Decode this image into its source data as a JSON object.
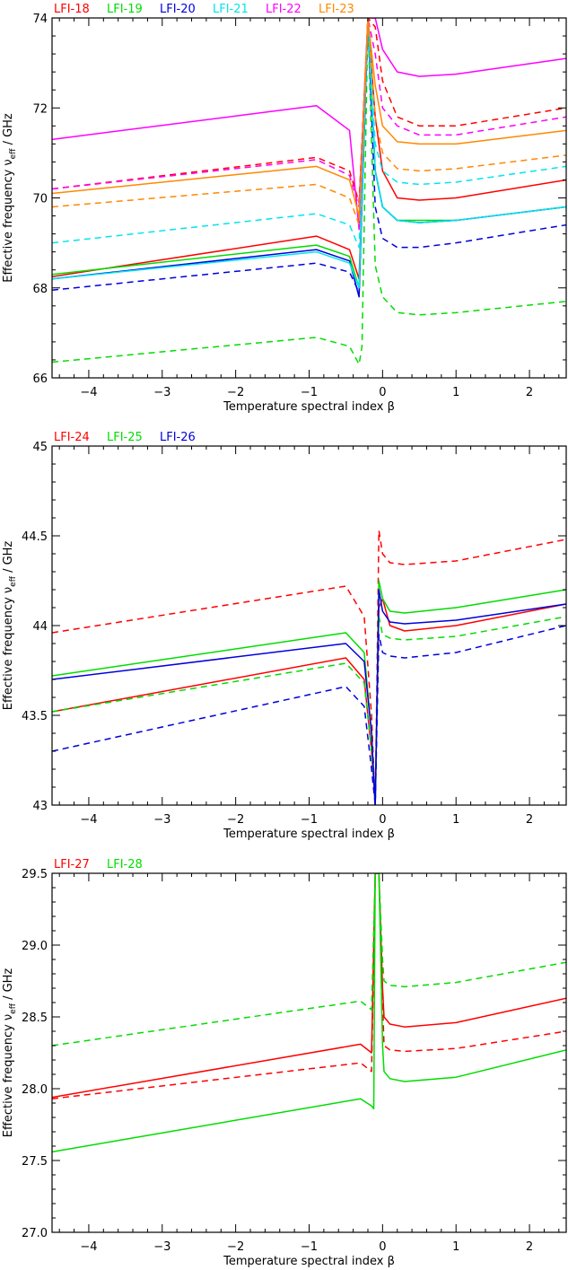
{
  "chart_data": [
    {
      "type": "line",
      "xlabel": "Temperature spectral index β",
      "ylabel": "Effective frequency ν_eff / GHz",
      "xlim": [
        -4.5,
        2.5
      ],
      "ylim": [
        66,
        74
      ],
      "xticks": [
        -4,
        -3,
        -2,
        -1,
        0,
        1,
        2
      ],
      "yticks": [
        66,
        68,
        70,
        72,
        74
      ],
      "legend": "top-left, above plot",
      "grid": false,
      "series": [
        {
          "name": "LFI-18",
          "color": "#ff0000",
          "style": "solid",
          "x": [
            -4.5,
            -0.9,
            -0.45,
            -0.32,
            -0.2,
            -0.1,
            0.0,
            0.2,
            0.5,
            1.0,
            2.5
          ],
          "values": [
            68.25,
            69.15,
            68.85,
            68.2,
            74.0,
            71.8,
            70.6,
            70.0,
            69.95,
            70.0,
            70.4
          ]
        },
        {
          "name": "LFI-18",
          "color": "#ff0000",
          "style": "dashed",
          "x": [
            -4.5,
            -0.9,
            -0.45,
            -0.32,
            -0.2,
            -0.1,
            0.0,
            0.2,
            0.5,
            1.0,
            2.5
          ],
          "values": [
            70.2,
            70.9,
            70.6,
            69.9,
            74.0,
            73.8,
            72.6,
            71.8,
            71.6,
            71.6,
            72.0
          ]
        },
        {
          "name": "LFI-19",
          "color": "#00dd00",
          "style": "solid",
          "x": [
            -4.5,
            -0.9,
            -0.45,
            -0.32,
            -0.2,
            -0.1,
            0.0,
            0.2,
            0.5,
            1.0,
            2.5
          ],
          "values": [
            68.3,
            68.95,
            68.7,
            68.0,
            74.0,
            70.6,
            69.8,
            69.5,
            69.5,
            69.5,
            69.8
          ]
        },
        {
          "name": "LFI-19",
          "color": "#00dd00",
          "style": "dashed",
          "x": [
            -4.5,
            -0.9,
            -0.45,
            -0.32,
            -0.28,
            -0.2,
            -0.1,
            0.0,
            0.2,
            0.5,
            1.0,
            2.5
          ],
          "values": [
            66.35,
            66.9,
            66.7,
            66.3,
            66.7,
            74.0,
            68.5,
            67.8,
            67.45,
            67.4,
            67.45,
            67.7
          ]
        },
        {
          "name": "LFI-20",
          "color": "#0000dd",
          "style": "solid",
          "x": [
            -4.5,
            -0.9,
            -0.45,
            -0.32,
            -0.2,
            -0.1,
            0.0,
            0.2,
            0.5,
            1.0,
            2.5
          ],
          "values": [
            68.2,
            68.85,
            68.6,
            67.8,
            74.0,
            70.6,
            69.8,
            69.5,
            69.45,
            69.5,
            69.8
          ]
        },
        {
          "name": "LFI-20",
          "color": "#0000dd",
          "style": "dashed",
          "x": [
            -4.5,
            -0.9,
            -0.45,
            -0.32,
            -0.2,
            -0.1,
            0.0,
            0.2,
            0.5,
            1.0,
            2.5
          ],
          "values": [
            67.95,
            68.55,
            68.35,
            67.9,
            74.0,
            69.8,
            69.1,
            68.9,
            68.9,
            69.0,
            69.4
          ]
        },
        {
          "name": "LFI-21",
          "color": "#00e5ee",
          "style": "solid",
          "x": [
            -4.5,
            -0.9,
            -0.45,
            -0.32,
            -0.2,
            -0.1,
            0.0,
            0.2,
            0.5,
            1.0,
            2.5
          ],
          "values": [
            68.2,
            68.8,
            68.55,
            68.0,
            74.0,
            70.6,
            69.8,
            69.5,
            69.45,
            69.5,
            69.8
          ]
        },
        {
          "name": "LFI-21",
          "color": "#00e5ee",
          "style": "dashed",
          "x": [
            -4.5,
            -0.9,
            -0.45,
            -0.32,
            -0.2,
            -0.1,
            0.0,
            0.2,
            0.5,
            1.0,
            2.5
          ],
          "values": [
            69.0,
            69.65,
            69.4,
            68.9,
            74.0,
            71.2,
            70.6,
            70.35,
            70.3,
            70.35,
            70.7
          ]
        },
        {
          "name": "LFI-22",
          "color": "#ff00ff",
          "style": "solid",
          "x": [
            -4.5,
            -0.9,
            -0.45,
            -0.32,
            -0.2,
            -0.1,
            0.0,
            0.2,
            0.5,
            1.0,
            2.5
          ],
          "values": [
            71.3,
            72.05,
            71.5,
            69.3,
            74.0,
            74.0,
            73.3,
            72.8,
            72.7,
            72.75,
            73.1
          ]
        },
        {
          "name": "LFI-22",
          "color": "#ff00ff",
          "style": "dashed",
          "x": [
            -4.5,
            -0.9,
            -0.45,
            -0.32,
            -0.2,
            -0.1,
            0.0,
            0.2,
            0.5,
            1.0,
            2.5
          ],
          "values": [
            70.2,
            70.85,
            70.5,
            69.8,
            74.0,
            73.2,
            72.0,
            71.6,
            71.4,
            71.4,
            71.8
          ]
        },
        {
          "name": "LFI-23",
          "color": "#ff8800",
          "style": "solid",
          "x": [
            -4.5,
            -0.9,
            -0.45,
            -0.32,
            -0.2,
            -0.1,
            0.0,
            0.2,
            0.5,
            1.0,
            2.5
          ],
          "values": [
            70.1,
            70.7,
            70.4,
            69.6,
            74.0,
            72.5,
            71.6,
            71.25,
            71.2,
            71.2,
            71.5
          ]
        },
        {
          "name": "LFI-23",
          "color": "#ff8800",
          "style": "dashed",
          "x": [
            -4.5,
            -0.9,
            -0.45,
            -0.32,
            -0.2,
            -0.1,
            0.0,
            0.2,
            0.5,
            1.0,
            2.5
          ],
          "values": [
            69.8,
            70.3,
            70.0,
            69.4,
            74.0,
            71.8,
            71.0,
            70.65,
            70.6,
            70.65,
            70.95
          ]
        }
      ]
    },
    {
      "type": "line",
      "xlabel": "Temperature spectral index β",
      "ylabel": "Effective frequency ν_eff / GHz",
      "xlim": [
        -4.5,
        2.5
      ],
      "ylim": [
        43.0,
        45.0
      ],
      "xticks": [
        -4,
        -3,
        -2,
        -1,
        0,
        1,
        2
      ],
      "yticks": [
        43.0,
        43.5,
        44.0,
        44.5,
        45.0
      ],
      "legend": "top-left, above plot",
      "grid": false,
      "series": [
        {
          "name": "LFI-24",
          "color": "#ff0000",
          "style": "solid",
          "x": [
            -4.5,
            -0.5,
            -0.25,
            -0.15,
            -0.1,
            -0.05,
            0.0,
            0.1,
            0.3,
            1.0,
            2.5
          ],
          "values": [
            43.52,
            43.82,
            43.7,
            43.3,
            43.0,
            44.1,
            44.15,
            44.0,
            43.97,
            44.0,
            44.12
          ]
        },
        {
          "name": "LFI-24",
          "color": "#ff0000",
          "style": "dashed",
          "x": [
            -4.5,
            -0.5,
            -0.25,
            -0.15,
            -0.1,
            -0.05,
            0.0,
            0.1,
            0.3,
            1.0,
            2.5
          ],
          "values": [
            43.96,
            44.22,
            44.05,
            43.5,
            43.0,
            44.53,
            44.4,
            44.35,
            44.34,
            44.36,
            44.48
          ]
        },
        {
          "name": "LFI-25",
          "color": "#00dd00",
          "style": "solid",
          "x": [
            -4.5,
            -0.5,
            -0.25,
            -0.15,
            -0.1,
            -0.05,
            0.0,
            0.1,
            0.3,
            1.0,
            2.5
          ],
          "values": [
            43.72,
            43.96,
            43.85,
            43.4,
            43.0,
            44.25,
            44.15,
            44.08,
            44.07,
            44.1,
            44.2
          ]
        },
        {
          "name": "LFI-25",
          "color": "#00dd00",
          "style": "dashed",
          "x": [
            -4.5,
            -0.5,
            -0.25,
            -0.15,
            -0.1,
            -0.05,
            0.0,
            0.1,
            0.3,
            1.0,
            2.5
          ],
          "values": [
            43.52,
            43.79,
            43.68,
            43.3,
            43.0,
            44.05,
            43.95,
            43.93,
            43.92,
            43.94,
            44.05
          ]
        },
        {
          "name": "LFI-26",
          "color": "#0000dd",
          "style": "solid",
          "x": [
            -4.5,
            -0.5,
            -0.25,
            -0.15,
            -0.1,
            -0.05,
            0.0,
            0.1,
            0.3,
            1.0,
            2.5
          ],
          "values": [
            43.7,
            43.9,
            43.8,
            43.4,
            43.0,
            44.2,
            44.08,
            44.02,
            44.01,
            44.03,
            44.12
          ]
        },
        {
          "name": "LFI-26",
          "color": "#0000dd",
          "style": "dashed",
          "x": [
            -4.5,
            -0.5,
            -0.25,
            -0.15,
            -0.1,
            -0.05,
            0.0,
            0.1,
            0.3,
            1.0,
            2.5
          ],
          "values": [
            43.3,
            43.66,
            43.55,
            43.2,
            43.0,
            43.95,
            43.85,
            43.83,
            43.82,
            43.85,
            44.0
          ]
        }
      ]
    },
    {
      "type": "line",
      "xlabel": "Temperature spectral index β",
      "ylabel": "Effective frequency ν_eff / GHz",
      "xlim": [
        -4.5,
        2.5
      ],
      "ylim": [
        27.0,
        29.5
      ],
      "xticks": [
        -4,
        -3,
        -2,
        -1,
        0,
        1,
        2
      ],
      "yticks": [
        27.0,
        27.5,
        28.0,
        28.5,
        29.0,
        29.5
      ],
      "legend": "top-left, above plot",
      "grid": false,
      "series": [
        {
          "name": "LFI-27",
          "color": "#ff0000",
          "style": "solid",
          "x": [
            -4.5,
            -0.3,
            -0.15,
            -0.1,
            -0.05,
            0.0,
            0.02,
            0.1,
            0.3,
            1.0,
            2.5
          ],
          "values": [
            27.94,
            28.31,
            28.25,
            29.5,
            29.5,
            28.7,
            28.5,
            28.45,
            28.43,
            28.46,
            28.63
          ]
        },
        {
          "name": "LFI-27",
          "color": "#ff0000",
          "style": "dashed",
          "x": [
            -4.5,
            -0.3,
            -0.15,
            -0.1,
            -0.05,
            0.0,
            0.02,
            0.1,
            0.3,
            1.0,
            2.5
          ],
          "values": [
            27.93,
            28.18,
            28.12,
            29.5,
            29.5,
            28.6,
            28.3,
            28.27,
            28.26,
            28.28,
            28.4
          ]
        },
        {
          "name": "LFI-28",
          "color": "#00dd00",
          "style": "solid",
          "x": [
            -4.5,
            -0.3,
            -0.15,
            -0.12,
            -0.1,
            -0.05,
            0.0,
            0.02,
            0.1,
            0.3,
            1.0,
            2.5
          ],
          "values": [
            27.56,
            27.93,
            27.88,
            27.86,
            29.5,
            29.5,
            28.3,
            28.12,
            28.07,
            28.05,
            28.08,
            28.27
          ]
        },
        {
          "name": "LFI-28",
          "color": "#00dd00",
          "style": "dashed",
          "x": [
            -4.5,
            -0.3,
            -0.15,
            -0.1,
            -0.05,
            0.0,
            0.02,
            0.1,
            0.3,
            1.0,
            2.5
          ],
          "values": [
            28.3,
            28.61,
            28.55,
            29.5,
            29.5,
            28.9,
            28.75,
            28.72,
            28.71,
            28.74,
            28.88
          ]
        }
      ]
    }
  ]
}
